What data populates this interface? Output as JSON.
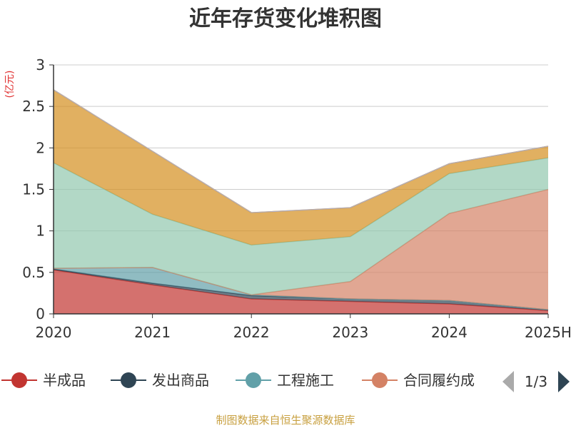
{
  "chart_data": {
    "type": "area",
    "stacked": true,
    "title": "近年存货变化堆积图",
    "unit_label": "(亿元)",
    "categories": [
      "2020",
      "2021",
      "2022",
      "2023",
      "2024",
      "2025H"
    ],
    "ylim": [
      0,
      3
    ],
    "yticks": [
      "0",
      "0.5",
      "1",
      "1.5",
      "2",
      "2.5",
      "3"
    ],
    "grid": true,
    "series": [
      {
        "name": "半成品",
        "color": "#c23531",
        "values": [
          0.53,
          0.35,
          0.18,
          0.15,
          0.12,
          0.04
        ]
      },
      {
        "name": "发出商品",
        "color": "#2f4554",
        "values": [
          0.01,
          0.02,
          0.04,
          0.03,
          0.04,
          0.01
        ]
      },
      {
        "name": "工程施工",
        "color": "#61a0a8",
        "values": [
          0.01,
          0.19,
          0.01,
          0.0,
          0.0,
          0.0
        ]
      },
      {
        "name": "合同履约成本",
        "color": "#d48265",
        "values": [
          0.0,
          0.0,
          0.0,
          0.21,
          1.05,
          1.45
        ]
      },
      {
        "name": "",
        "color": "#91c7ae",
        "values": [
          1.27,
          0.64,
          0.6,
          0.54,
          0.48,
          0.38
        ]
      },
      {
        "name": "",
        "color": "#d48f1e",
        "values": [
          0.88,
          0.76,
          0.39,
          0.35,
          0.12,
          0.14
        ]
      }
    ],
    "legend_visible": [
      "半成品",
      "发出商品",
      "工程施工",
      "合同履约成"
    ],
    "legend_page": "1/3",
    "source": "制图数据来自恒生聚源数据库"
  }
}
